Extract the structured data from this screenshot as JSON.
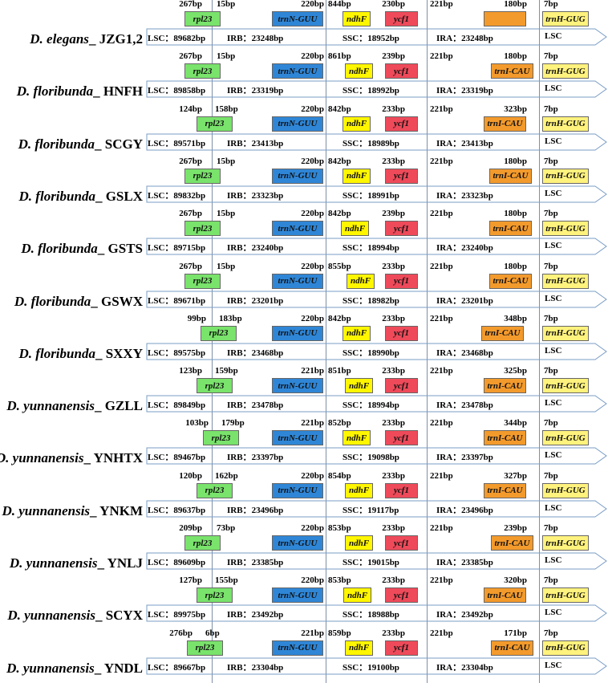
{
  "colors": {
    "rpl23": "#79e36b",
    "trnN_GUU": "#2f86d6",
    "ndhF": "#fff600",
    "ycf1": "#ee4a5a",
    "trnI_CAU": "#f39a2c",
    "trnH_GUG": "#fff27d",
    "junction_line": "#7f8fa6",
    "bar_outline": "#7a9cc6"
  },
  "gene_names": {
    "rpl23": "rpl23",
    "trnN": "trnN-GUU",
    "ndhF": "ndhF",
    "ycf1": "ycf1",
    "trnI": "trnI-CAU",
    "trnH": "trnH-GUG"
  },
  "region_labels": {
    "lsc": "LSC：",
    "irb": "IRB：",
    "ssc": "SSC：",
    "ira": "IRA：",
    "lsc_end": "LSC"
  },
  "rows": [
    {
      "genus": "D. elegans",
      "sep": "_",
      "pop": " JZG1,2",
      "bp": [
        "267bp",
        "15bp",
        "220bp",
        "844bp",
        "230bp",
        "221bp",
        "180bp",
        "7bp"
      ],
      "lsc": "89682bp",
      "irb": "23248bp",
      "ssc": "18952bp",
      "ira": "23248bp"
    },
    {
      "genus": "D. floribunda",
      "sep": "_",
      "pop": " HNFH",
      "bp": [
        "267bp",
        "15bp",
        "220bp",
        "861bp",
        "239bp",
        "221bp",
        "180bp",
        "7bp"
      ],
      "lsc": "89858bp",
      "irb": "23319bp",
      "ssc": "18992bp",
      "ira": "23319bp"
    },
    {
      "genus": "D. floribunda",
      "sep": "_",
      "pop": " SCGY",
      "bp": [
        "124bp",
        "158bp",
        "220bp",
        "842bp",
        "233bp",
        "221bp",
        "323bp",
        "7bp"
      ],
      "lsc": "89571bp",
      "irb": "23413bp",
      "ssc": "18989bp",
      "ira": "23413bp"
    },
    {
      "genus": "D. floribunda",
      "sep": "_",
      "pop": " GSLX",
      "bp": [
        "267bp",
        "15bp",
        "220bp",
        "842bp",
        "233bp",
        "221bp",
        "180bp",
        "7bp"
      ],
      "lsc": "89832bp",
      "irb": "23323bp",
      "ssc": "18991bp",
      "ira": "23323bp"
    },
    {
      "genus": "D. floribunda",
      "sep": "_",
      "pop": " GSTS",
      "bp": [
        "267bp",
        "15bp",
        "220bp",
        "842bp",
        "239bp",
        "221bp",
        "180bp",
        "7bp"
      ],
      "lsc": "89715bp",
      "irb": "23240bp",
      "ssc": "18994bp",
      "ira": "23240bp"
    },
    {
      "genus": "D. floribunda",
      "sep": "_",
      "pop": " GSWX",
      "bp": [
        "267bp",
        "15bp",
        "220bp",
        "855bp",
        "233bp",
        "221bp",
        "180bp",
        "7bp"
      ],
      "lsc": "89671bp",
      "irb": "23201bp",
      "ssc": "18982bp",
      "ira": "23201bp"
    },
    {
      "genus": "D. floribunda",
      "sep": "_",
      "pop": " SXXY",
      "bp": [
        "99bp",
        "183bp",
        "220bp",
        "842bp",
        "233bp",
        "221bp",
        "348bp",
        "7bp"
      ],
      "lsc": "89575bp",
      "irb": "23468bp",
      "ssc": "18990bp",
      "ira": "23468bp"
    },
    {
      "genus": "D. yunnanensis",
      "sep": "_",
      "pop": " GZLL",
      "bp": [
        "123bp",
        "159bp",
        "221bp",
        "851bp",
        "233bp",
        "221bp",
        "325bp",
        "7bp"
      ],
      "lsc": "89849bp",
      "irb": "23478bp",
      "ssc": "18994bp",
      "ira": "23478bp"
    },
    {
      "genus": "D. yunnanensis",
      "sep": "_",
      "pop": " YNHTX",
      "bp": [
        "103bp",
        "179bp",
        "221bp",
        "852bp",
        "233bp",
        "221bp",
        "344bp",
        "7bp"
      ],
      "lsc": "89467bp",
      "irb": "23397bp",
      "ssc": "19098bp",
      "ira": "23397bp"
    },
    {
      "genus": "D. yunnanensis",
      "sep": "_",
      "pop": " YNKM",
      "bp": [
        "120bp",
        "162bp",
        "220bp",
        "854bp",
        "233bp",
        "221bp",
        "327bp",
        "7bp"
      ],
      "lsc": "89637bp",
      "irb": "23496bp",
      "ssc": "19117bp",
      "ira": "23496bp"
    },
    {
      "genus": "D. yunnanensis",
      "sep": "_",
      "pop": " YNLJ",
      "bp": [
        "209bp",
        "73bp",
        "220bp",
        "853bp",
        "233bp",
        "221bp",
        "239bp",
        "7bp"
      ],
      "lsc": "89609bp",
      "irb": "23385bp",
      "ssc": "19015bp",
      "ira": "23385bp"
    },
    {
      "genus": "D. yunnanensis",
      "sep": "_",
      "pop": " SCYX",
      "bp": [
        "127bp",
        "155bp",
        "220bp",
        "853bp",
        "233bp",
        "221bp",
        "320bp",
        "7bp"
      ],
      "lsc": "89975bp",
      "irb": "23492bp",
      "ssc": "18988bp",
      "ira": "23492bp"
    },
    {
      "genus": "D. yunnanensis",
      "sep": "_",
      "pop": " YNDL",
      "bp": [
        "276bp",
        "6bp",
        "221bp",
        "859bp",
        "233bp",
        "221bp",
        "171bp",
        "7bp"
      ],
      "lsc": "89667bp",
      "irb": "23304bp",
      "ssc": "19100bp",
      "ira": "23304bp"
    }
  ]
}
